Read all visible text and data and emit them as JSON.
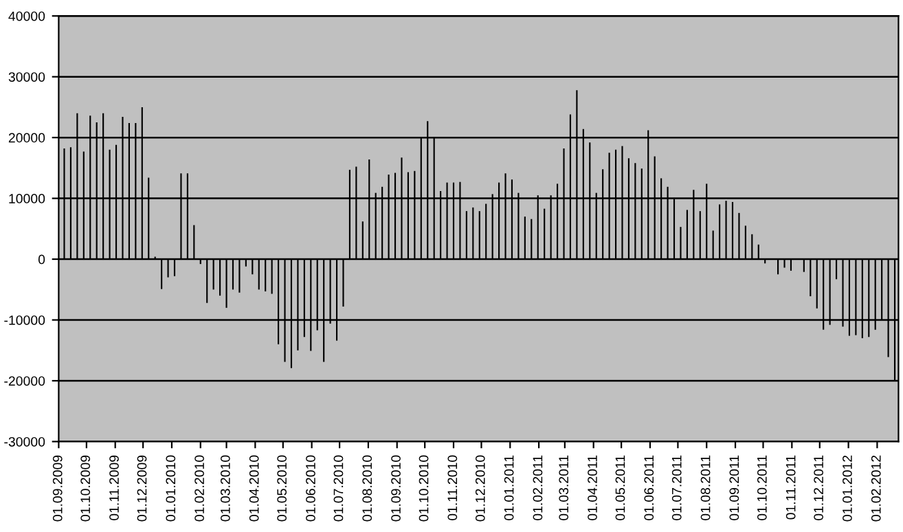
{
  "chart_data": {
    "type": "bar",
    "x": [
      "2009-09-07",
      "2009-09-14",
      "2009-09-21",
      "2009-09-28",
      "2009-10-05",
      "2009-10-12",
      "2009-10-19",
      "2009-10-26",
      "2009-11-02",
      "2009-11-09",
      "2009-11-16",
      "2009-11-23",
      "2009-11-30",
      "2009-12-07",
      "2009-12-14",
      "2009-12-21",
      "2009-12-28",
      "2010-01-04",
      "2010-01-11",
      "2010-01-18",
      "2010-01-25",
      "2010-02-01",
      "2010-02-08",
      "2010-02-15",
      "2010-02-22",
      "2010-03-01",
      "2010-03-08",
      "2010-03-15",
      "2010-03-22",
      "2010-03-29",
      "2010-04-05",
      "2010-04-12",
      "2010-04-19",
      "2010-04-26",
      "2010-05-03",
      "2010-05-10",
      "2010-05-17",
      "2010-05-24",
      "2010-05-31",
      "2010-06-07",
      "2010-06-14",
      "2010-06-21",
      "2010-06-28",
      "2010-07-05",
      "2010-07-12",
      "2010-07-19",
      "2010-07-26",
      "2010-08-02",
      "2010-08-09",
      "2010-08-16",
      "2010-08-23",
      "2010-08-30",
      "2010-09-06",
      "2010-09-13",
      "2010-09-20",
      "2010-09-27",
      "2010-10-04",
      "2010-10-11",
      "2010-10-18",
      "2010-10-25",
      "2010-11-01",
      "2010-11-08",
      "2010-11-15",
      "2010-11-22",
      "2010-11-29",
      "2010-12-06",
      "2010-12-13",
      "2010-12-20",
      "2010-12-27",
      "2011-01-03",
      "2011-01-10",
      "2011-01-17",
      "2011-01-24",
      "2011-01-31",
      "2011-02-07",
      "2011-02-14",
      "2011-02-21",
      "2011-02-28",
      "2011-03-07",
      "2011-03-14",
      "2011-03-21",
      "2011-03-28",
      "2011-04-04",
      "2011-04-11",
      "2011-04-18",
      "2011-04-25",
      "2011-05-02",
      "2011-05-09",
      "2011-05-16",
      "2011-05-23",
      "2011-05-30",
      "2011-06-06",
      "2011-06-13",
      "2011-06-20",
      "2011-06-27",
      "2011-07-04",
      "2011-07-11",
      "2011-07-18",
      "2011-07-25",
      "2011-08-01",
      "2011-08-08",
      "2011-08-15",
      "2011-08-22",
      "2011-08-29",
      "2011-09-05",
      "2011-09-12",
      "2011-09-19",
      "2011-09-26",
      "2011-10-03",
      "2011-10-10",
      "2011-10-17",
      "2011-10-24",
      "2011-10-31",
      "2011-11-07",
      "2011-11-14",
      "2011-11-21",
      "2011-11-28",
      "2011-12-05",
      "2011-12-12",
      "2011-12-19",
      "2011-12-26",
      "2012-01-02",
      "2012-01-09",
      "2012-01-16",
      "2012-01-23",
      "2012-01-30",
      "2012-02-06",
      "2012-02-13",
      "2012-02-20"
    ],
    "values": [
      18200,
      18400,
      24000,
      17700,
      23600,
      22500,
      24000,
      18000,
      18800,
      23400,
      22400,
      22400,
      25000,
      13400,
      400,
      -4900,
      -3000,
      -2800,
      14100,
      14100,
      5600,
      -800,
      -7200,
      -5000,
      -6000,
      -8000,
      -5000,
      -5500,
      -1200,
      -2500,
      -5000,
      -5300,
      -5700,
      -14000,
      -16900,
      -17900,
      -15000,
      -12800,
      -15100,
      -11700,
      -16900,
      -10600,
      -13400,
      -7800,
      14700,
      15200,
      6200,
      16400,
      10900,
      11900,
      13900,
      14200,
      16700,
      14300,
      14500,
      20000,
      22700,
      20000,
      11200,
      12600,
      12600,
      12700,
      7900,
      8500,
      7900,
      9100,
      10700,
      12600,
      14100,
      13100,
      10900,
      7000,
      6600,
      10500,
      8300,
      10500,
      12400,
      18200,
      23800,
      27800,
      21400,
      19200,
      10900,
      14800,
      17500,
      18000,
      18600,
      16600,
      15800,
      14900,
      21200,
      16900,
      13300,
      11900,
      9900,
      5300,
      8100,
      11400,
      7900,
      12400,
      4700,
      9000,
      9600,
      9400,
      7600,
      5500,
      4100,
      2400,
      -700,
      0,
      -2500,
      -1400,
      -1900,
      0,
      -2100,
      -6100,
      -8100,
      -11600,
      -10800,
      -3300,
      -11100,
      -12600,
      -12500,
      -13000,
      -12800,
      -11600,
      -10000,
      -16100,
      -20000
    ],
    "color": "#000000",
    "xlim": [
      "2009-09-01",
      "2012-02-24"
    ],
    "xticks": [
      {
        "value": "2009-09-01",
        "label": "01.09.2009"
      },
      {
        "value": "2009-10-01",
        "label": "01.10.2009"
      },
      {
        "value": "2009-11-01",
        "label": "01.11.2009"
      },
      {
        "value": "2009-12-01",
        "label": "01.12.2009"
      },
      {
        "value": "2010-01-01",
        "label": "01.01.2010"
      },
      {
        "value": "2010-02-01",
        "label": "01.02.2010"
      },
      {
        "value": "2010-03-01",
        "label": "01.03.2010"
      },
      {
        "value": "2010-04-01",
        "label": "01.04.2010"
      },
      {
        "value": "2010-05-01",
        "label": "01.05.2010"
      },
      {
        "value": "2010-06-01",
        "label": "01.06.2010"
      },
      {
        "value": "2010-07-01",
        "label": "01.07.2010"
      },
      {
        "value": "2010-08-01",
        "label": "01.08.2010"
      },
      {
        "value": "2010-09-01",
        "label": "01.09.2010"
      },
      {
        "value": "2010-10-01",
        "label": "01.10.2010"
      },
      {
        "value": "2010-11-01",
        "label": "01.11.2010"
      },
      {
        "value": "2010-12-01",
        "label": "01.12.2010"
      },
      {
        "value": "2011-01-01",
        "label": "01.01.2011"
      },
      {
        "value": "2011-02-01",
        "label": "01.02.2011"
      },
      {
        "value": "2011-03-01",
        "label": "01.03.2011"
      },
      {
        "value": "2011-04-01",
        "label": "01.04.2011"
      },
      {
        "value": "2011-05-01",
        "label": "01.05.2011"
      },
      {
        "value": "2011-06-01",
        "label": "01.06.2011"
      },
      {
        "value": "2011-07-01",
        "label": "01.07.2011"
      },
      {
        "value": "2011-08-01",
        "label": "01.08.2011"
      },
      {
        "value": "2011-09-01",
        "label": "01.09.2011"
      },
      {
        "value": "2011-10-01",
        "label": "01.10.2011"
      },
      {
        "value": "2011-11-01",
        "label": "01.11.2011"
      },
      {
        "value": "2011-12-01",
        "label": "01.12.2011"
      },
      {
        "value": "2012-01-01",
        "label": "01.01.2012"
      },
      {
        "value": "2012-02-01",
        "label": "01.02.2012"
      }
    ],
    "ylim": [
      -30000,
      40000
    ],
    "yticks": [
      -30000,
      -20000,
      -10000,
      0,
      10000,
      20000,
      30000,
      40000
    ],
    "grid": "y",
    "legend": false
  }
}
